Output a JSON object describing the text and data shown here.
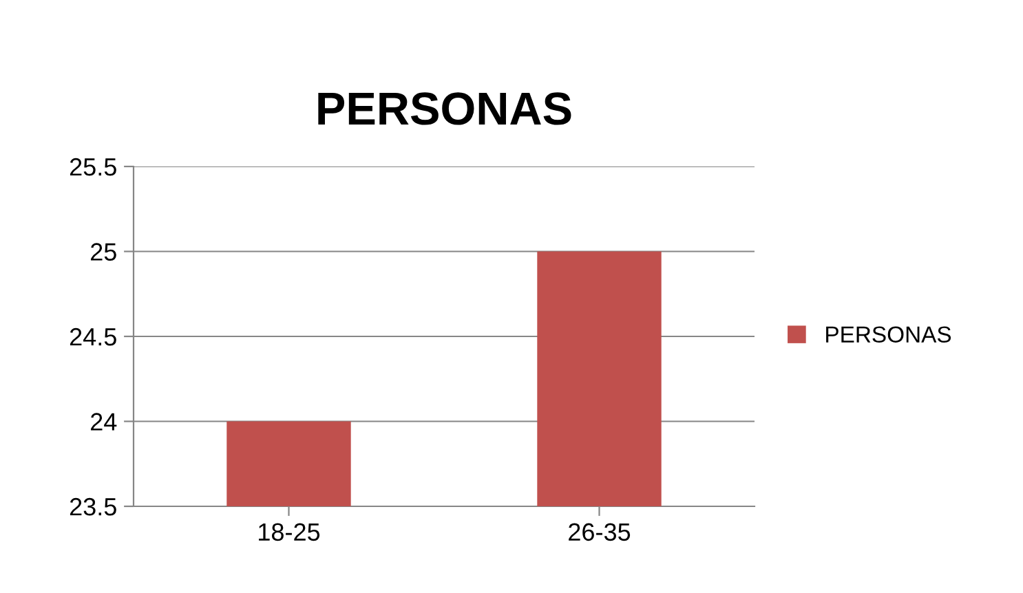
{
  "chart_data": {
    "type": "bar",
    "title": "PERSONAS",
    "categories": [
      "18-25",
      "26-35"
    ],
    "series": [
      {
        "name": "PERSONAS",
        "color": "#c0504d",
        "values": [
          24,
          25
        ]
      }
    ],
    "ylim": [
      23.5,
      25.5
    ],
    "yticks": [
      23.5,
      24,
      24.5,
      25,
      25.5
    ],
    "grid": "y",
    "legend": "right"
  }
}
